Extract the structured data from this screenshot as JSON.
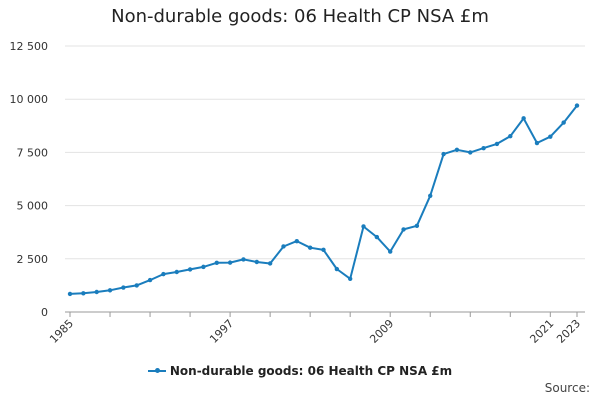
{
  "colors": {
    "series": "#1a7dbd",
    "grid": "#e3e3e3",
    "axis": "#999999"
  },
  "source_label": "Source:",
  "chart_data": {
    "type": "line",
    "title": "Non-durable goods: 06 Health CP NSA £m",
    "xlabel": "",
    "ylabel": "",
    "ylim": [
      0,
      12500
    ],
    "yticks": [
      0,
      2500,
      5000,
      7500,
      10000,
      12500
    ],
    "ytick_labels": [
      "0",
      "2 500",
      "5 000",
      "7 500",
      "10 000",
      "12 500"
    ],
    "xlim": [
      1985,
      2023
    ],
    "xticks": [
      1985,
      1997,
      2009,
      2021,
      2023
    ],
    "xtick_labels": [
      "1985",
      "1997",
      "2009",
      "2021",
      "2023"
    ],
    "legend_position": "bottom",
    "series": [
      {
        "name": "Non-durable goods: 06 Health CP NSA £m",
        "x": [
          1985,
          1986,
          1987,
          1988,
          1989,
          1990,
          1991,
          1992,
          1993,
          1994,
          1995,
          1996,
          1997,
          1998,
          1999,
          2000,
          2001,
          2002,
          2003,
          2004,
          2005,
          2006,
          2007,
          2008,
          2009,
          2010,
          2011,
          2012,
          2013,
          2014,
          2015,
          2016,
          2017,
          2018,
          2019,
          2020,
          2021,
          2022,
          2023
        ],
        "values": [
          850,
          880,
          940,
          1020,
          1150,
          1250,
          1500,
          1780,
          1880,
          2000,
          2120,
          2310,
          2320,
          2470,
          2350,
          2280,
          3080,
          3330,
          3020,
          2920,
          2020,
          1560,
          4020,
          3520,
          2840,
          3880,
          4050,
          5460,
          7420,
          7620,
          7500,
          7700,
          7900,
          8260,
          9100,
          7940,
          8240,
          8900,
          9700
        ]
      }
    ]
  }
}
